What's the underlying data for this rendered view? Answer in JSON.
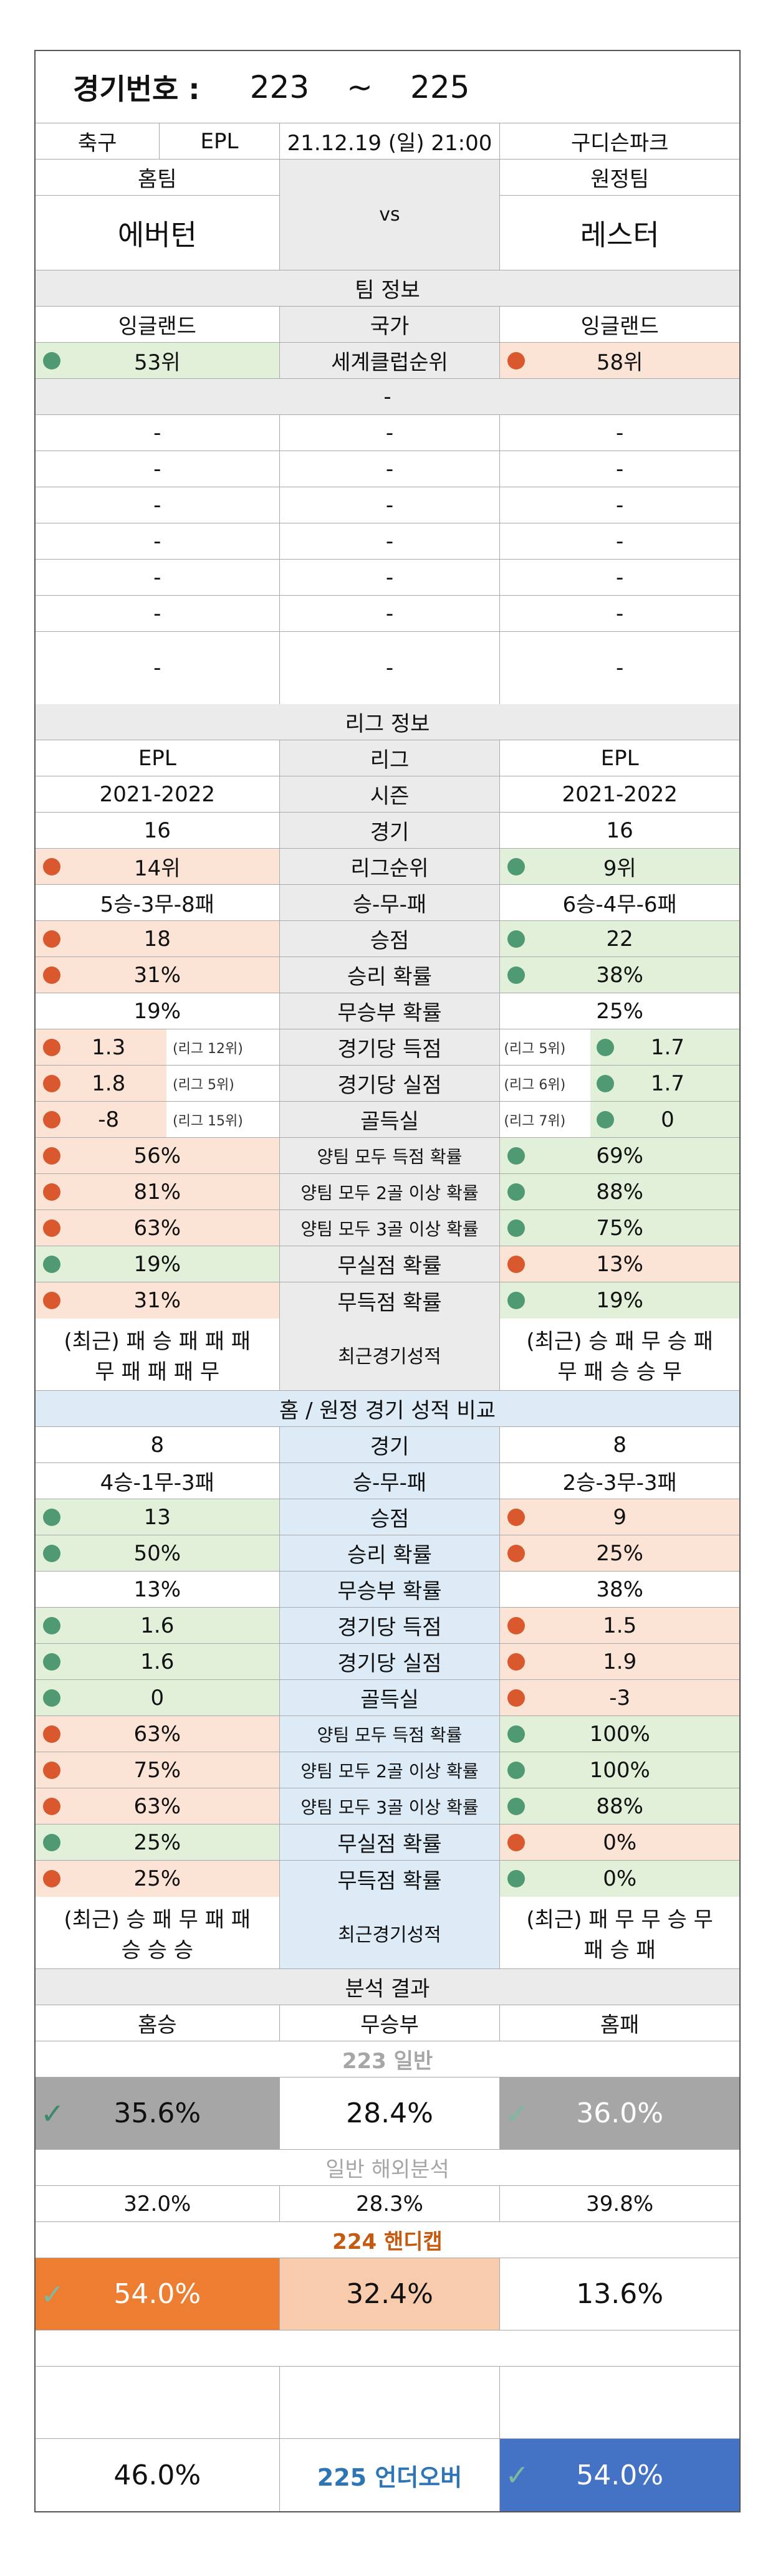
{
  "header": {
    "label": "경기번호 :",
    "start": "223",
    "sep": "~",
    "end": "225"
  },
  "match": {
    "sport": "축구",
    "league": "EPL",
    "datetime": "21.12.19 (일) 21:00",
    "venue": "구디슨파크"
  },
  "teams": {
    "home_label": "홈팀",
    "away_label": "원정팀",
    "home": "에버턴",
    "vs": "vs",
    "away": "레스터"
  },
  "team_info": {
    "title": "팀 정보",
    "country_label": "국가",
    "home_country": "잉글랜드",
    "away_country": "잉글랜드",
    "world_label": "세계클럽순위",
    "home_world": "53위",
    "away_world": "58위",
    "empty": "-"
  },
  "league_info": {
    "title": "리그 정보",
    "rows": [
      {
        "label": "리그",
        "home": "EPL",
        "away": "EPL"
      },
      {
        "label": "시즌",
        "home": "2021-2022",
        "away": "2021-2022"
      },
      {
        "label": "경기",
        "home": "16",
        "away": "16"
      },
      {
        "label": "리그순위",
        "home": "14위",
        "away": "9위"
      },
      {
        "label": "승-무-패",
        "home": "5승-3무-8패",
        "away": "6승-4무-6패"
      },
      {
        "label": "승점",
        "home": "18",
        "away": "22"
      },
      {
        "label": "승리 확률",
        "home": "31%",
        "away": "38%"
      },
      {
        "label": "무승부 확률",
        "home": "19%",
        "away": "25%"
      },
      {
        "label": "경기당 득점",
        "home": "1.3",
        "home_rank": "(리그 12위)",
        "away": "1.7",
        "away_rank": "(리그 5위)"
      },
      {
        "label": "경기당 실점",
        "home": "1.8",
        "home_rank": "(리그 5위)",
        "away": "1.7",
        "away_rank": "(리그 6위)"
      },
      {
        "label": "골득실",
        "home": "-8",
        "home_rank": "(리그 15위)",
        "away": "0",
        "away_rank": "(리그 7위)"
      },
      {
        "label": "양팀 모두 득점 확률",
        "home": "56%",
        "away": "69%"
      },
      {
        "label": "양팀 모두 2골 이상 확률",
        "home": "81%",
        "away": "88%"
      },
      {
        "label": "양팀 모두 3골 이상 확률",
        "home": "63%",
        "away": "75%"
      },
      {
        "label": "무실점 확률",
        "home": "19%",
        "away": "13%"
      },
      {
        "label": "무득점 확률",
        "home": "31%",
        "away": "19%"
      }
    ],
    "recent_label": "최근경기성적",
    "home_recent_1": "(최근) 패 승 패 패 패",
    "home_recent_2": "무 패 패 패 무",
    "away_recent_1": "(최근) 승 패 무 승 패",
    "away_recent_2": "무 패 승 승 무"
  },
  "homeaway": {
    "title": "홈 / 원정 경기 성적 비교",
    "rows": [
      {
        "label": "경기",
        "home": "8",
        "away": "8"
      },
      {
        "label": "승-무-패",
        "home": "4승-1무-3패",
        "away": "2승-3무-3패"
      },
      {
        "label": "승점",
        "home": "13",
        "away": "9"
      },
      {
        "label": "승리 확률",
        "home": "50%",
        "away": "25%"
      },
      {
        "label": "무승부 확률",
        "home": "13%",
        "away": "38%"
      },
      {
        "label": "경기당 득점",
        "home": "1.6",
        "away": "1.5"
      },
      {
        "label": "경기당 실점",
        "home": "1.6",
        "away": "1.9"
      },
      {
        "label": "골득실",
        "home": "0",
        "away": "-3"
      },
      {
        "label": "양팀 모두 득점 확률",
        "home": "63%",
        "away": "100%"
      },
      {
        "label": "양팀 모두 2골 이상 확률",
        "home": "75%",
        "away": "100%"
      },
      {
        "label": "양팀 모두 3골 이상 확률",
        "home": "63%",
        "away": "88%"
      },
      {
        "label": "무실점 확률",
        "home": "25%",
        "away": "0%"
      },
      {
        "label": "무득점 확률",
        "home": "25%",
        "away": "0%"
      }
    ],
    "recent_label": "최근경기성적",
    "home_recent_1": "(최근) 승 패 무 패 패",
    "home_recent_2": "승 승 승",
    "away_recent_1": "(최근) 패 무 무 승 무",
    "away_recent_2": "패 승 패"
  },
  "analysis": {
    "title": "분석 결과",
    "home_win": "홈승",
    "draw": "무승부",
    "home_loss": "홈패",
    "general_title": "223 일반",
    "general": {
      "home": "35.6%",
      "draw": "28.4%",
      "away": "36.0%"
    },
    "overseas_title": "일반 해외분석",
    "overseas": {
      "home": "32.0%",
      "draw": "28.3%",
      "away": "39.8%"
    },
    "handicap_title": "224 핸디캡",
    "handicap": {
      "home": "54.0%",
      "draw": "32.4%",
      "away": "13.6%"
    },
    "underover_title": "225 언더오버",
    "underover": {
      "under": "46.0%",
      "over": "54.0%"
    }
  },
  "colors": {
    "green": "#e2f0d9",
    "pink": "#fbe3d6",
    "orange": "#ed7d31",
    "light_orange": "#f8cbad",
    "blue": "#4472c4",
    "dark_gray": "#a6a6a6"
  }
}
